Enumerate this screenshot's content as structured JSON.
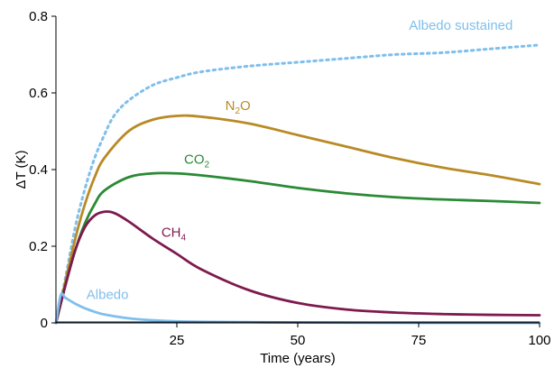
{
  "chart_data": {
    "type": "line",
    "xlabel": "Time (years)",
    "ylabel": "ΔT (K)",
    "xlim": [
      0,
      100
    ],
    "ylim": [
      0,
      0.8
    ],
    "x_ticks": [
      25,
      50,
      75,
      100
    ],
    "x_tick_labels": [
      "25",
      "50",
      "75",
      "100"
    ],
    "y_ticks": [
      0,
      0.2,
      0.4,
      0.6,
      0.8
    ],
    "y_tick_labels": [
      "0",
      "0.2",
      "0.4",
      "0.6",
      "0.8"
    ],
    "grid": false,
    "legend": "inline labels",
    "series": [
      {
        "name": "Albedo sustained",
        "label_text": "Albedo sustained",
        "color": "#7fbfec",
        "line_style": "dotted",
        "x": [
          0,
          2,
          4,
          6,
          8,
          10,
          12,
          15,
          20,
          25,
          30,
          40,
          50,
          60,
          70,
          80,
          90,
          100
        ],
        "y": [
          0,
          0.12,
          0.25,
          0.35,
          0.43,
          0.49,
          0.54,
          0.58,
          0.62,
          0.64,
          0.655,
          0.67,
          0.68,
          0.69,
          0.7,
          0.705,
          0.715,
          0.725
        ]
      },
      {
        "name": "N2O",
        "label_text": "N",
        "label_sub": "2",
        "label_tail": "O",
        "color": "#b88a25",
        "line_style": "solid",
        "x": [
          0,
          2,
          4,
          6,
          8,
          10,
          15,
          20,
          25,
          30,
          40,
          50,
          60,
          70,
          80,
          90,
          100
        ],
        "y": [
          0,
          0.11,
          0.22,
          0.31,
          0.38,
          0.43,
          0.5,
          0.53,
          0.54,
          0.538,
          0.52,
          0.49,
          0.46,
          0.43,
          0.405,
          0.385,
          0.362
        ]
      },
      {
        "name": "CO2",
        "label_text": "CO",
        "label_sub": "2",
        "label_tail": "",
        "color": "#2a8a35",
        "line_style": "solid",
        "x": [
          0,
          2,
          4,
          6,
          8,
          10,
          15,
          20,
          25,
          30,
          40,
          50,
          60,
          70,
          80,
          90,
          100
        ],
        "y": [
          0,
          0.1,
          0.19,
          0.26,
          0.31,
          0.345,
          0.38,
          0.39,
          0.39,
          0.385,
          0.37,
          0.352,
          0.338,
          0.328,
          0.322,
          0.318,
          0.313
        ]
      },
      {
        "name": "CH4",
        "label_text": "CH",
        "label_sub": "4",
        "label_tail": "",
        "color": "#7d1a4e",
        "line_style": "solid",
        "x": [
          0,
          2,
          4,
          6,
          8,
          10,
          12,
          15,
          20,
          25,
          30,
          40,
          50,
          60,
          70,
          80,
          90,
          100
        ],
        "y": [
          0,
          0.1,
          0.19,
          0.25,
          0.28,
          0.29,
          0.287,
          0.265,
          0.22,
          0.18,
          0.14,
          0.085,
          0.052,
          0.035,
          0.027,
          0.023,
          0.021,
          0.02
        ]
      },
      {
        "name": "Albedo",
        "label_text": "Albedo",
        "color": "#7fbfec",
        "line_style": "solid",
        "x": [
          0,
          1,
          2,
          4,
          6,
          8,
          10,
          15,
          20,
          25,
          30,
          40,
          50,
          75,
          100
        ],
        "y": [
          0,
          0.073,
          0.065,
          0.05,
          0.038,
          0.029,
          0.022,
          0.012,
          0.007,
          0.004,
          0.003,
          0.002,
          0.001,
          0.0,
          0.0
        ]
      }
    ]
  }
}
